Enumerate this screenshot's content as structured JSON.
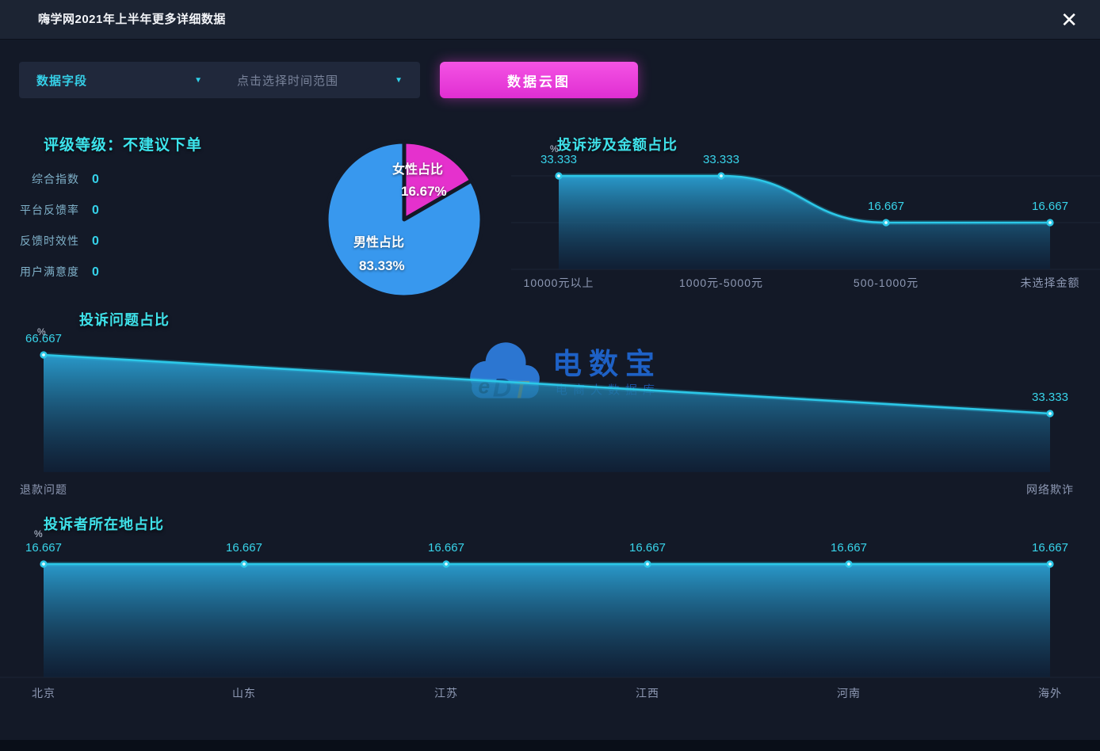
{
  "header": {
    "title": "嗨学网2021年上半年更多详细数据",
    "close_icon": "✕"
  },
  "controls": {
    "field_dropdown": {
      "label": "数据字段"
    },
    "time_dropdown": {
      "label": "点击选择时间范围"
    },
    "dropdown_arrow_icon": "▼",
    "action_button": {
      "label": "数据云图"
    }
  },
  "rating_panel": {
    "title": "评级等级：不建议下单",
    "metrics": [
      {
        "label": "综合指数",
        "value": "0"
      },
      {
        "label": "平台反馈率",
        "value": "0"
      },
      {
        "label": "反馈时效性",
        "value": "0"
      },
      {
        "label": "用户满意度",
        "value": "0"
      }
    ]
  },
  "watermark": {
    "logo_text": "eDT",
    "brand": "电数宝",
    "tagline": "电商大数据库"
  },
  "colors": {
    "background": "#131927",
    "titlebar": "#1c2433",
    "accent_cyan": "#35d0e8",
    "line": "#2cc8e8",
    "button_pink": "#e835d8",
    "pie_female": "#e531cd",
    "pie_male": "#3898ee",
    "title_text": "#3fe2ea",
    "axis_label": "#8e99b4"
  },
  "chart_data": [
    {
      "id": "gender_pie",
      "type": "pie",
      "slices": [
        {
          "label": "女性占比",
          "value": 16.67,
          "display": "16.67%",
          "color": "#e531cd"
        },
        {
          "label": "男性占比",
          "value": 83.33,
          "display": "83.33%",
          "color": "#3898ee"
        }
      ]
    },
    {
      "id": "amount_ratio",
      "type": "area",
      "title": "投诉涉及金额占比",
      "unit": "%",
      "categories": [
        "10000元以上",
        "1000元-5000元",
        "500-1000元",
        "未选择金额"
      ],
      "values": [
        33.333,
        33.333,
        16.667,
        16.667
      ],
      "ylim": [
        0,
        50
      ],
      "smooth": true,
      "grid": true,
      "legend": "none"
    },
    {
      "id": "issue_ratio",
      "type": "area",
      "title": "投诉问题占比",
      "unit": "%",
      "categories": [
        "退款问题",
        "网络欺诈"
      ],
      "values": [
        66.667,
        33.333
      ],
      "ylim": [
        0,
        100
      ],
      "smooth": false,
      "grid": false,
      "legend": "none"
    },
    {
      "id": "location_ratio",
      "type": "area",
      "title": "投诉者所在地占比",
      "unit": "%",
      "categories": [
        "北京",
        "山东",
        "江苏",
        "江西",
        "河南",
        "海外"
      ],
      "values": [
        16.667,
        16.667,
        16.667,
        16.667,
        16.667,
        16.667
      ],
      "ylim": [
        0,
        20
      ],
      "smooth": false,
      "grid": true,
      "legend": "none"
    }
  ]
}
